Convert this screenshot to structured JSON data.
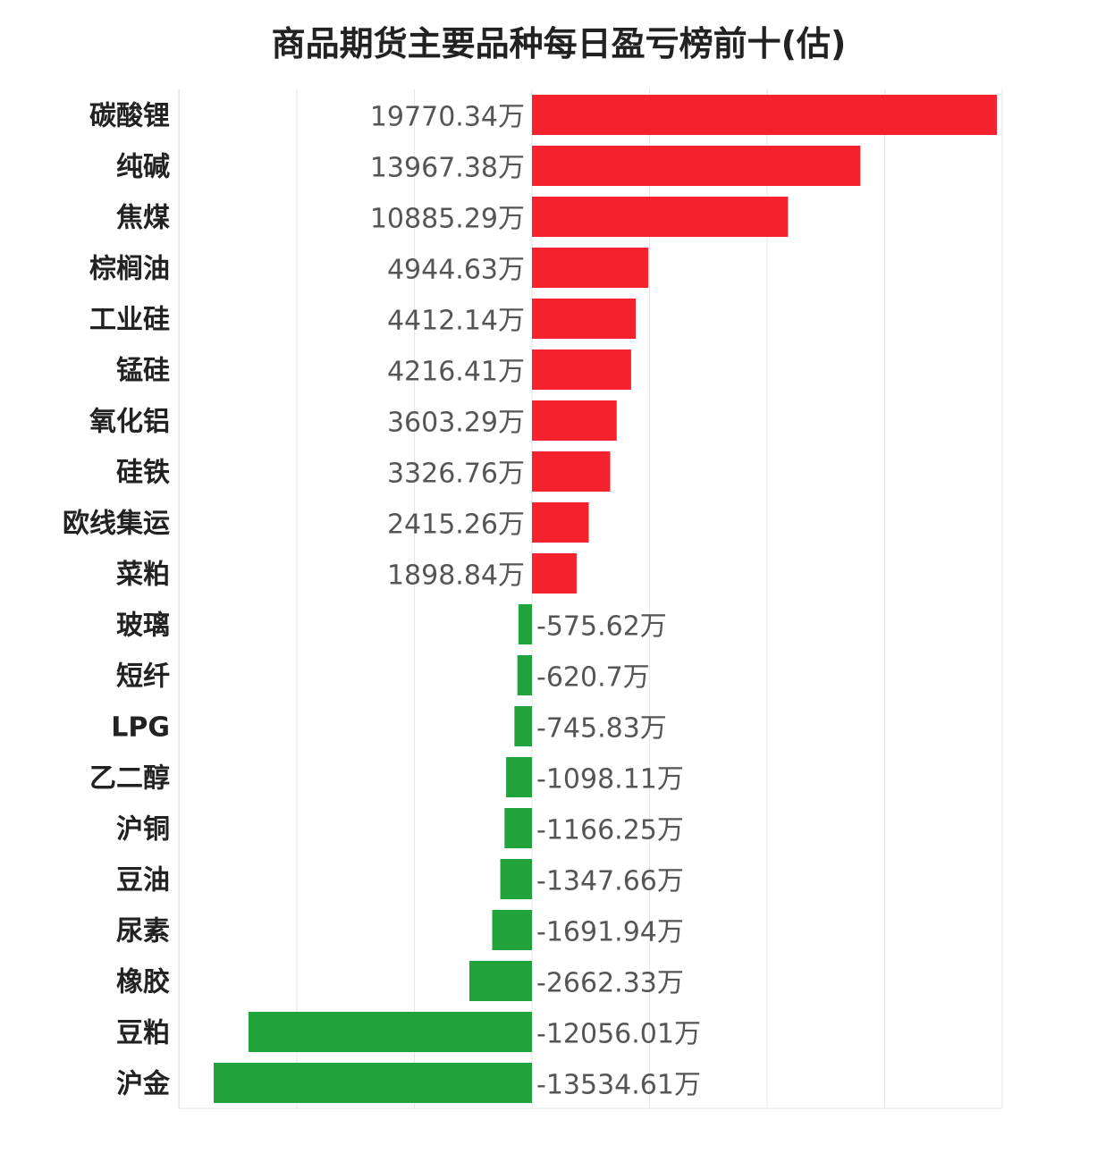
{
  "chart_data": {
    "type": "bar",
    "orientation": "horizontal",
    "title": "商品期货主要品种每日盈亏榜前十(估)",
    "xlabel": "",
    "ylabel": "",
    "value_unit_suffix": "万",
    "grid": true,
    "xlim": [
      -15000,
      20000
    ],
    "categories": [
      "碳酸锂",
      "纯碱",
      "焦煤",
      "棕榈油",
      "工业硅",
      "锰硅",
      "氧化铝",
      "硅铁",
      "欧线集运",
      "菜粕",
      "玻璃",
      "短纤",
      "LPG",
      "乙二醇",
      "沪铜",
      "豆油",
      "尿素",
      "橡胶",
      "豆粕",
      "沪金"
    ],
    "values": [
      19770.34,
      13967.38,
      10885.29,
      4944.63,
      4412.14,
      4216.41,
      3603.29,
      3326.76,
      2415.26,
      1898.84,
      -575.62,
      -620.7,
      -745.83,
      -1098.11,
      -1166.25,
      -1347.66,
      -1691.94,
      -2662.33,
      -12056.01,
      -13534.61
    ],
    "value_labels": [
      "19770.34万",
      "13967.38万",
      "10885.29万",
      "4944.63万",
      "4412.14万",
      "4216.41万",
      "3603.29万",
      "3326.76万",
      "2415.26万",
      "1898.84万",
      "-575.62万",
      "-620.7万",
      "-745.83万",
      "-1098.11万",
      "-1166.25万",
      "-1347.66万",
      "-1691.94万",
      "-2662.33万",
      "-12056.01万",
      "-13534.61万"
    ],
    "colors": {
      "positive": "#f5222d",
      "negative": "#1fa33a",
      "grid": "#e6e6e6",
      "category_text": "#222222",
      "value_text": "#555555"
    }
  }
}
